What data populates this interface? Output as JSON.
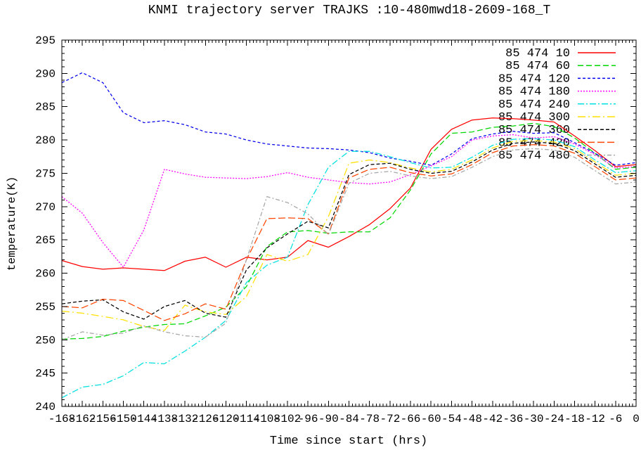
{
  "page": {
    "background": "#ffffff"
  },
  "chart_data": {
    "type": "line",
    "title": "KNMI trajectory server TRAJKS :10-480mwd18-2609-168_T",
    "xlabel": "Time since start (hrs)",
    "ylabel": "temperature(K)",
    "xlim": [
      -168,
      0
    ],
    "ylim": [
      240,
      295
    ],
    "x_major_tick_step": 6,
    "x_minor_tick_step": 1,
    "y_major_tick_step": 5,
    "y_minor_tick_step": 1,
    "grid": false,
    "legend_position": "top-right-inside",
    "axis_color": "#000000",
    "x": [
      -168,
      -162,
      -156,
      -150,
      -144,
      -138,
      -132,
      -126,
      -120,
      -114,
      -108,
      -102,
      -96,
      -90,
      -84,
      -78,
      -72,
      -66,
      -60,
      -54,
      -48,
      -42,
      -36,
      -30,
      -24,
      -18,
      -12,
      -6,
      0
    ],
    "series": [
      {
        "name": "85 474 10",
        "color": "#ff0000",
        "dash": "",
        "values": [
          261.9,
          261.0,
          260.6,
          260.8,
          260.6,
          260.4,
          261.8,
          262.4,
          260.9,
          262.4,
          262.0,
          262.4,
          264.9,
          263.9,
          265.5,
          267.3,
          269.7,
          272.8,
          278.6,
          281.6,
          283.0,
          283.3,
          283.2,
          283.0,
          282.7,
          280.6,
          278.4,
          276.0,
          276.3
        ]
      },
      {
        "name": "85 474 60",
        "color": "#00d800",
        "dash": "8,4",
        "values": [
          250.1,
          250.2,
          250.5,
          251.3,
          251.9,
          252.3,
          252.4,
          253.6,
          254.9,
          258.0,
          264.0,
          266.2,
          266.4,
          266.0,
          266.2,
          266.2,
          268.3,
          272.5,
          277.9,
          281.0,
          281.2,
          281.9,
          282.1,
          282.5,
          282.0,
          280.3,
          278.0,
          275.6,
          275.9
        ]
      },
      {
        "name": "85 474 120",
        "color": "#0000ee",
        "dash": "4,3",
        "values": [
          288.6,
          290.1,
          288.6,
          284.1,
          282.6,
          282.9,
          282.3,
          281.2,
          280.9,
          280.0,
          279.4,
          279.1,
          278.8,
          278.7,
          278.5,
          278.1,
          277.3,
          276.8,
          276.2,
          277.9,
          280.2,
          280.9,
          281.3,
          281.0,
          281.1,
          279.6,
          278.0,
          276.2,
          276.6
        ]
      },
      {
        "name": "85 474 180",
        "color": "#ff00ff",
        "dash": "2,2",
        "values": [
          271.5,
          269.0,
          264.6,
          260.9,
          266.5,
          275.6,
          274.9,
          274.4,
          274.3,
          274.2,
          274.5,
          275.1,
          274.4,
          274.0,
          273.6,
          273.4,
          273.7,
          274.8,
          276.1,
          277.5,
          280.0,
          280.6,
          280.8,
          280.3,
          280.5,
          279.4,
          277.8,
          275.8,
          276.0
        ]
      },
      {
        "name": "85 474 240",
        "color": "#00e0e0",
        "dash": "9,3,2,3",
        "values": [
          241.3,
          242.9,
          243.3,
          244.6,
          246.6,
          246.4,
          248.3,
          250.4,
          252.9,
          258.6,
          261.2,
          262.4,
          270.3,
          275.9,
          278.3,
          278.3,
          277.5,
          276.6,
          275.8,
          275.9,
          277.4,
          279.2,
          280.1,
          280.2,
          280.0,
          279.0,
          277.0,
          275.1,
          275.4
        ]
      },
      {
        "name": "85 474 300",
        "color": "#ffe000",
        "dash": "11,4,2,4",
        "values": [
          254.3,
          254.0,
          253.5,
          253.0,
          252.0,
          251.4,
          255.2,
          254.2,
          253.8,
          256.5,
          262.8,
          261.8,
          262.8,
          268.5,
          276.5,
          277.0,
          276.6,
          275.8,
          275.2,
          275.6,
          277.0,
          278.8,
          279.8,
          279.9,
          279.7,
          278.7,
          276.7,
          274.7,
          275.0
        ]
      },
      {
        "name": "85 474 360",
        "color": "#000000",
        "dash": "5,3",
        "values": [
          255.4,
          255.8,
          256.0,
          254.2,
          253.1,
          255.0,
          255.9,
          254.0,
          253.4,
          260.5,
          263.8,
          265.9,
          267.8,
          266.8,
          274.8,
          276.3,
          276.5,
          275.6,
          275.0,
          275.3,
          276.7,
          278.5,
          279.5,
          279.7,
          279.5,
          278.4,
          276.4,
          274.4,
          274.7
        ]
      },
      {
        "name": "85 474 420",
        "color": "#ff4500",
        "dash": "10,4",
        "values": [
          255.0,
          254.8,
          256.1,
          255.9,
          254.4,
          252.9,
          253.9,
          255.4,
          254.6,
          262.0,
          268.2,
          268.3,
          268.2,
          265.9,
          274.3,
          275.6,
          275.9,
          275.1,
          274.6,
          274.9,
          276.3,
          278.1,
          279.1,
          279.3,
          279.1,
          278.0,
          276.0,
          274.0,
          274.3
        ]
      },
      {
        "name": "85 474 480",
        "color": "#a6a6a6",
        "dash": "6,3,2,3",
        "values": [
          250.0,
          251.2,
          250.7,
          251.0,
          252.1,
          251.2,
          250.6,
          250.4,
          252.5,
          262.0,
          271.5,
          270.6,
          268.9,
          265.8,
          273.5,
          275.0,
          275.3,
          274.6,
          274.2,
          274.5,
          275.9,
          277.5,
          278.5,
          278.7,
          278.5,
          277.4,
          275.4,
          273.4,
          273.7
        ]
      }
    ]
  }
}
